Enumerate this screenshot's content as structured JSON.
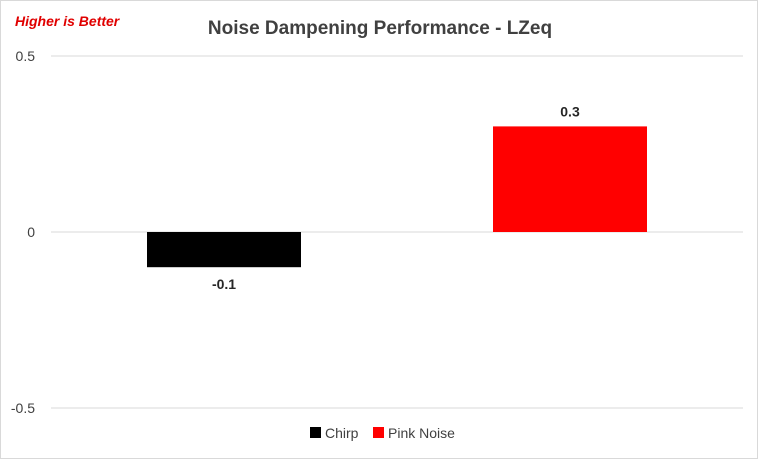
{
  "chart_data": {
    "type": "bar",
    "title": "Noise Dampening Performance - LZeq",
    "annotation": "Higher is Better",
    "annotation_color": "#e00000",
    "categories": [
      "Chirp",
      "Pink Noise"
    ],
    "values": [
      -0.1,
      0.3
    ],
    "data_labels": [
      "-0.1",
      "0.3"
    ],
    "colors": [
      "#000000",
      "#ff0000"
    ],
    "ylim": [
      -0.5,
      0.5
    ],
    "yticks": [
      0.5,
      0,
      -0.5
    ],
    "ytick_labels": [
      "0.5",
      "0",
      "-0.5"
    ],
    "xlabel": "",
    "ylabel": "",
    "grid": true,
    "legend_position": "bottom"
  }
}
